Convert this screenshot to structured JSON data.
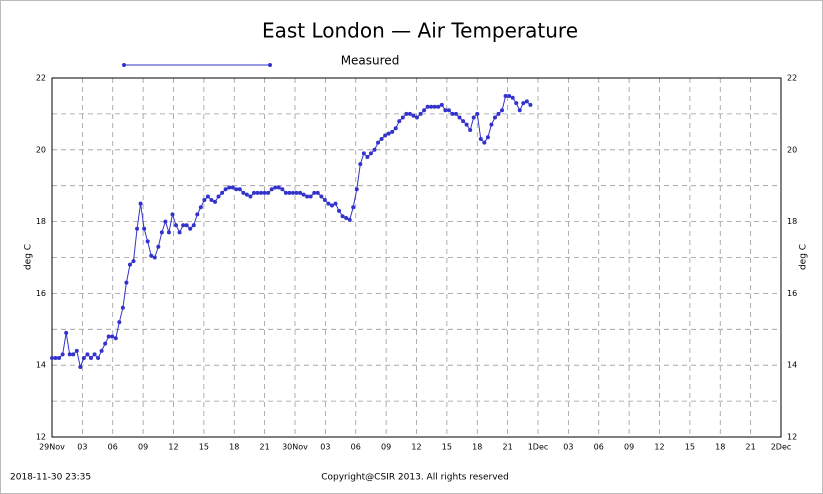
{
  "chart_data": {
    "type": "line",
    "title": "East London — Air Temperature",
    "y_label": "deg C",
    "timestamp": "2018-11-30 23:35",
    "copyright": "Copyright@CSIR 2013.  All rights reserved",
    "xlim": [
      0,
      4320
    ],
    "ylim": [
      12,
      22
    ],
    "yticks": [
      12,
      14,
      16,
      18,
      20,
      22
    ],
    "y_minor_ticks": [
      13,
      15,
      17,
      19,
      21
    ],
    "xticks": [
      {
        "value": 0,
        "label": "29Nov"
      },
      {
        "value": 180,
        "label": "03"
      },
      {
        "value": 360,
        "label": "06"
      },
      {
        "value": 540,
        "label": "09"
      },
      {
        "value": 720,
        "label": "12"
      },
      {
        "value": 900,
        "label": "15"
      },
      {
        "value": 1080,
        "label": "18"
      },
      {
        "value": 1260,
        "label": "21"
      },
      {
        "value": 1440,
        "label": "30Nov"
      },
      {
        "value": 1620,
        "label": "03"
      },
      {
        "value": 1800,
        "label": "06"
      },
      {
        "value": 1980,
        "label": "09"
      },
      {
        "value": 2160,
        "label": "12"
      },
      {
        "value": 2340,
        "label": "15"
      },
      {
        "value": 2520,
        "label": "18"
      },
      {
        "value": 2700,
        "label": "21"
      },
      {
        "value": 2880,
        "label": "1Dec"
      },
      {
        "value": 3060,
        "label": "03"
      },
      {
        "value": 3240,
        "label": "06"
      },
      {
        "value": 3420,
        "label": "09"
      },
      {
        "value": 3600,
        "label": "12"
      },
      {
        "value": 3780,
        "label": "15"
      },
      {
        "value": 3960,
        "label": "18"
      },
      {
        "value": 4140,
        "label": "21"
      },
      {
        "value": 4320,
        "label": "2Dec"
      }
    ],
    "grid": true,
    "legend": "top",
    "x": [
      0,
      21,
      42,
      63,
      84,
      105,
      126,
      147,
      168,
      189,
      210,
      231,
      252,
      273,
      294,
      315,
      336,
      357,
      378,
      399,
      420,
      441,
      462,
      483,
      504,
      525,
      546,
      567,
      588,
      609,
      630,
      651,
      672,
      693,
      714,
      735,
      756,
      777,
      798,
      819,
      840,
      861,
      882,
      903,
      924,
      945,
      966,
      987,
      1008,
      1029,
      1050,
      1071,
      1092,
      1113,
      1134,
      1155,
      1176,
      1197,
      1218,
      1239,
      1260,
      1281,
      1302,
      1323,
      1344,
      1365,
      1386,
      1407,
      1428,
      1449,
      1470,
      1491,
      1512,
      1533,
      1554,
      1575,
      1596,
      1617,
      1638,
      1659,
      1680,
      1701,
      1722,
      1743,
      1764,
      1785,
      1806,
      1827,
      1848,
      1869,
      1890,
      1911,
      1932,
      1953,
      1974,
      1995,
      2016,
      2037,
      2058,
      2079,
      2100,
      2121,
      2142,
      2163,
      2184,
      2205,
      2226,
      2247,
      2268,
      2289,
      2310,
      2331,
      2352,
      2373,
      2394,
      2415,
      2436,
      2457,
      2478,
      2499,
      2520,
      2541,
      2562,
      2583,
      2604,
      2625,
      2646,
      2667,
      2688,
      2709,
      2730,
      2751,
      2772,
      2793,
      2814,
      2835
    ],
    "series": [
      {
        "name": "Measured",
        "color": "#3333cc",
        "values": [
          14.2,
          14.2,
          14.2,
          14.3,
          14.9,
          14.3,
          14.3,
          14.4,
          13.95,
          14.2,
          14.3,
          14.2,
          14.3,
          14.2,
          14.4,
          14.6,
          14.8,
          14.8,
          14.75,
          15.2,
          15.6,
          16.3,
          16.8,
          16.9,
          17.8,
          18.5,
          17.8,
          17.45,
          17.05,
          17.0,
          17.3,
          17.7,
          18.0,
          17.7,
          18.2,
          17.9,
          17.7,
          17.9,
          17.9,
          17.8,
          17.9,
          18.2,
          18.4,
          18.6,
          18.7,
          18.6,
          18.55,
          18.7,
          18.8,
          18.9,
          18.95,
          18.95,
          18.9,
          18.9,
          18.8,
          18.75,
          18.7,
          18.8,
          18.8,
          18.8,
          18.8,
          18.8,
          18.9,
          18.95,
          18.95,
          18.9,
          18.8,
          18.8,
          18.8,
          18.8,
          18.8,
          18.75,
          18.7,
          18.7,
          18.8,
          18.8,
          18.7,
          18.6,
          18.5,
          18.45,
          18.5,
          18.3,
          18.15,
          18.1,
          18.05,
          18.4,
          18.9,
          19.6,
          19.9,
          19.8,
          19.9,
          20.0,
          20.2,
          20.3,
          20.4,
          20.45,
          20.5,
          20.6,
          20.8,
          20.9,
          21.0,
          21.0,
          20.95,
          20.9,
          21.0,
          21.1,
          21.2,
          21.2,
          21.2,
          21.2,
          21.25,
          21.1,
          21.1,
          21.0,
          21.0,
          20.9,
          20.8,
          20.7,
          20.55,
          20.9,
          21.0,
          20.3,
          20.2,
          20.35,
          20.7,
          20.9,
          21.0,
          21.1,
          21.5,
          21.5,
          21.45,
          21.3,
          21.1,
          21.3,
          21.35,
          21.25
        ]
      }
    ]
  }
}
